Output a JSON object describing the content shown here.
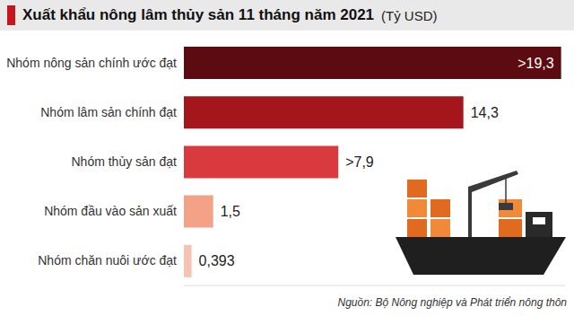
{
  "chart_data": {
    "type": "bar",
    "title": "Xuất khẩu nông lâm thủy sản 11 tháng năm 2021",
    "subtitle": "(Tỷ USD)",
    "source": "Nguồn: Bộ Nông nghiệp và Phát triển nông thôn",
    "orientation": "horizontal",
    "categories": [
      "Nhóm nông sản chính ước đạt",
      "Nhóm lâm sản chính đạt",
      "Nhóm thủy sản đạt",
      "Nhóm đầu vào sản xuất",
      "Nhóm chăn nuôi ước đạt"
    ],
    "values": [
      19.3,
      14.3,
      7.9,
      1.5,
      0.393
    ],
    "value_labels": [
      ">19,3",
      "14,3",
      ">7,9",
      "1,5",
      "0,393"
    ],
    "colors": [
      "#5c0b10",
      "#a5161c",
      "#d93a3d",
      "#f3a287",
      "#f7c3b0"
    ],
    "xlim": [
      0,
      19.5
    ],
    "xticks": [],
    "data_labels": true,
    "tick_labels": "y",
    "grid": false
  }
}
